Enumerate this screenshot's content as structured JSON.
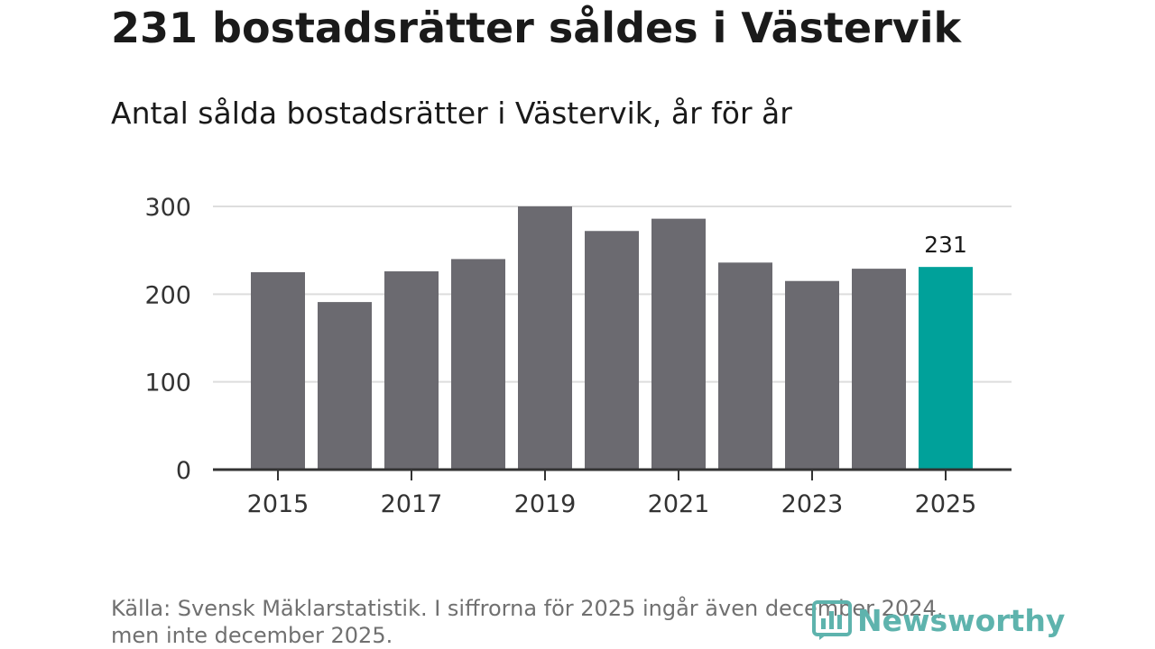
{
  "header": {
    "title": "231 bostadsrätter såldes i Västervik",
    "subtitle": "Antal sålda bostadsrätter i Västervik, år för år"
  },
  "footer": {
    "source_line1": "Källa: Svensk Mäklarstatistik. I siffrorna för 2025 ingår även december 2024,",
    "source_line2": "men inte december 2025.",
    "logo_text": "Newsworthy"
  },
  "colors": {
    "bar": "#6b6a70",
    "highlight": "#00a19a",
    "axis": "#333333",
    "grid": "#dddddd",
    "logo": "#5eb3ad"
  },
  "chart_data": {
    "type": "bar",
    "title": "Antal sålda bostadsrätter i Västervik, år för år",
    "categories": [
      "2015",
      "2016",
      "2017",
      "2018",
      "2019",
      "2020",
      "2021",
      "2022",
      "2023",
      "2024",
      "2025"
    ],
    "values": [
      225,
      191,
      226,
      240,
      300,
      272,
      286,
      236,
      215,
      229,
      231
    ],
    "highlight_index": 10,
    "x_tick_labels": [
      "2015",
      "2017",
      "2019",
      "2021",
      "2023",
      "2025"
    ],
    "y_ticks": [
      0,
      100,
      200,
      300
    ],
    "ylim": [
      0,
      300
    ],
    "data_labels": [
      {
        "index": 10,
        "text": "231"
      }
    ],
    "xlabel": "",
    "ylabel": "",
    "grid": true
  }
}
